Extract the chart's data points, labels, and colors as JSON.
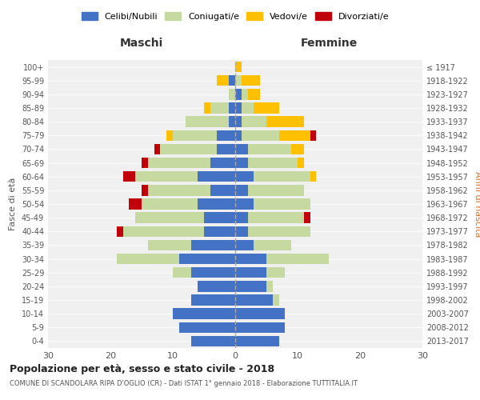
{
  "age_groups": [
    "0-4",
    "5-9",
    "10-14",
    "15-19",
    "20-24",
    "25-29",
    "30-34",
    "35-39",
    "40-44",
    "45-49",
    "50-54",
    "55-59",
    "60-64",
    "65-69",
    "70-74",
    "75-79",
    "80-84",
    "85-89",
    "90-94",
    "95-99",
    "100+"
  ],
  "birth_years": [
    "2013-2017",
    "2008-2012",
    "2003-2007",
    "1998-2002",
    "1993-1997",
    "1988-1992",
    "1983-1987",
    "1978-1982",
    "1973-1977",
    "1968-1972",
    "1963-1967",
    "1958-1962",
    "1953-1957",
    "1948-1952",
    "1943-1947",
    "1938-1942",
    "1933-1937",
    "1928-1932",
    "1923-1927",
    "1918-1922",
    "≤ 1917"
  ],
  "maschi": {
    "celibi": [
      7,
      9,
      10,
      7,
      6,
      7,
      9,
      7,
      5,
      5,
      6,
      4,
      6,
      4,
      3,
      3,
      1,
      1,
      0,
      1,
      0
    ],
    "coniugati": [
      0,
      0,
      0,
      0,
      0,
      3,
      10,
      7,
      13,
      11,
      9,
      10,
      10,
      10,
      9,
      7,
      7,
      3,
      1,
      0,
      0
    ],
    "vedovi": [
      0,
      0,
      0,
      0,
      0,
      0,
      0,
      0,
      0,
      0,
      0,
      0,
      0,
      0,
      0,
      1,
      0,
      1,
      0,
      2,
      0
    ],
    "divorziati": [
      0,
      0,
      0,
      0,
      0,
      0,
      0,
      0,
      1,
      0,
      2,
      1,
      2,
      1,
      1,
      0,
      0,
      0,
      0,
      0,
      0
    ]
  },
  "femmine": {
    "nubili": [
      7,
      8,
      8,
      6,
      5,
      5,
      5,
      3,
      2,
      2,
      3,
      2,
      3,
      2,
      2,
      1,
      1,
      1,
      1,
      0,
      0
    ],
    "coniugate": [
      0,
      0,
      0,
      1,
      1,
      3,
      10,
      6,
      10,
      9,
      9,
      9,
      9,
      8,
      7,
      6,
      4,
      2,
      1,
      1,
      0
    ],
    "vedove": [
      0,
      0,
      0,
      0,
      0,
      0,
      0,
      0,
      0,
      0,
      0,
      0,
      1,
      1,
      2,
      5,
      6,
      4,
      2,
      3,
      1
    ],
    "divorziate": [
      0,
      0,
      0,
      0,
      0,
      0,
      0,
      0,
      0,
      1,
      0,
      0,
      0,
      0,
      0,
      1,
      0,
      0,
      0,
      0,
      0
    ]
  },
  "colors": {
    "celibi": "#4472c4",
    "coniugati": "#c5d9a0",
    "vedovi": "#ffc000",
    "divorziati": "#c0000b"
  },
  "title": "Popolazione per età, sesso e stato civile - 2018",
  "subtitle": "COMUNE DI SCANDOLARA RIPA D'OGLIO (CR) - Dati ISTAT 1° gennaio 2018 - Elaborazione TUTTITALIA.IT",
  "xlabel_maschi": "Maschi",
  "xlabel_femmine": "Femmine",
  "ylabel": "Fasce di età",
  "ylabel_right": "Anni di nascita",
  "xlim": 30,
  "background": "#ffffff",
  "plot_bg": "#f0f0f0",
  "grid_color": "#ffffff"
}
